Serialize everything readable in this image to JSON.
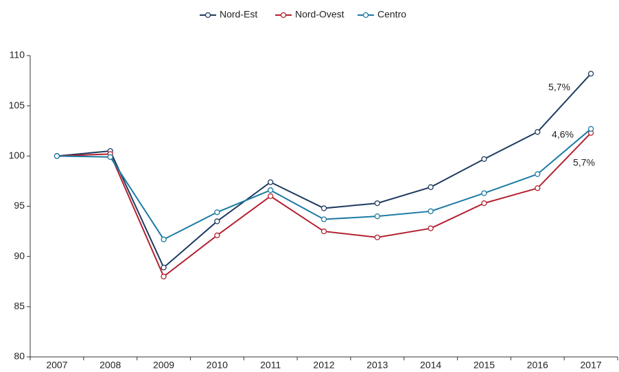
{
  "chart_data": {
    "type": "line",
    "categories": [
      "2007",
      "2008",
      "2009",
      "2010",
      "2011",
      "2012",
      "2013",
      "2014",
      "2015",
      "2016",
      "2017"
    ],
    "series": [
      {
        "name": "Nord-Est",
        "color": "#1c3a5e",
        "values": [
          100,
          100.5,
          88.9,
          93.5,
          97.4,
          94.8,
          95.3,
          96.9,
          99.7,
          102.4,
          108.2
        ]
      },
      {
        "name": "Nord-Ovest",
        "color": "#b3202f",
        "values": [
          100,
          100.2,
          88.0,
          92.1,
          96.0,
          92.5,
          91.9,
          92.8,
          95.3,
          96.8,
          102.3
        ]
      },
      {
        "name": "Centro",
        "color": "#1a7aa3",
        "values": [
          100,
          99.9,
          91.7,
          94.4,
          96.6,
          93.7,
          94.0,
          94.5,
          96.3,
          98.2,
          102.7
        ]
      }
    ],
    "annotations": [
      "5,7%",
      "4,6%",
      "5,7%"
    ],
    "ylim": [
      80,
      110
    ],
    "yticks": [
      80,
      85,
      90,
      95,
      100,
      105,
      110
    ],
    "legend": "top",
    "grid": false
  }
}
